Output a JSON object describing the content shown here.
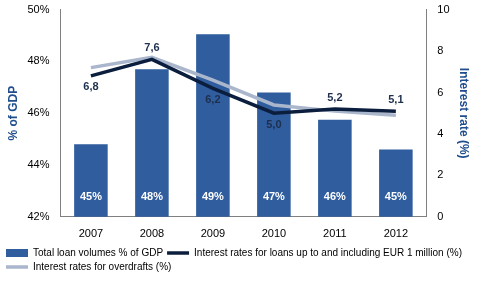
{
  "chart_data": {
    "type": "bar",
    "categories": [
      "2007",
      "2008",
      "2009",
      "2010",
      "2011",
      "2012"
    ],
    "series": [
      {
        "name": "Total loan volumes % of GDP",
        "type": "bar",
        "color": "#2f5d9e",
        "values": [
          44.8,
          47.7,
          49.05,
          46.8,
          45.75,
          44.6
        ],
        "data_labels": true,
        "value_labels": [
          "45%",
          "48%",
          "49%",
          "47%",
          "46%",
          "45%"
        ]
      },
      {
        "name": "Interest rates for loans up to and including EUR 1 million (%)",
        "type": "line",
        "axis": "y2",
        "color": "#0c1e3e",
        "marker": "none",
        "line_style": "solid",
        "values": [
          6.8,
          7.6,
          6.2,
          5.0,
          5.2,
          5.1
        ],
        "data_labels": true,
        "value_labels": [
          "6,8",
          "7,6",
          "6,2",
          "5,0",
          "5,2",
          "5,1"
        ]
      },
      {
        "name": "Interest rates for overdrafts (%)",
        "type": "line",
        "axis": "y2",
        "color": "#a9b6cc",
        "marker": "none",
        "line_style": "solid",
        "values": [
          7.2,
          7.7,
          6.6,
          5.4,
          5.1,
          4.9
        ]
      }
    ],
    "y_label": "% of GDP",
    "y2_label": "Interest rate (%)",
    "ylim": [
      42,
      50
    ],
    "yticks": [
      {
        "value": 42,
        "label": "42%"
      },
      {
        "value": 44,
        "label": "44%"
      },
      {
        "value": 46,
        "label": "46%"
      },
      {
        "value": 48,
        "label": "48%"
      },
      {
        "value": 50,
        "label": "50%"
      }
    ],
    "y2lim": [
      0,
      10
    ],
    "y2ticks": [
      0,
      2,
      4,
      6,
      8,
      10
    ],
    "grid": false,
    "legend": "bottom"
  }
}
